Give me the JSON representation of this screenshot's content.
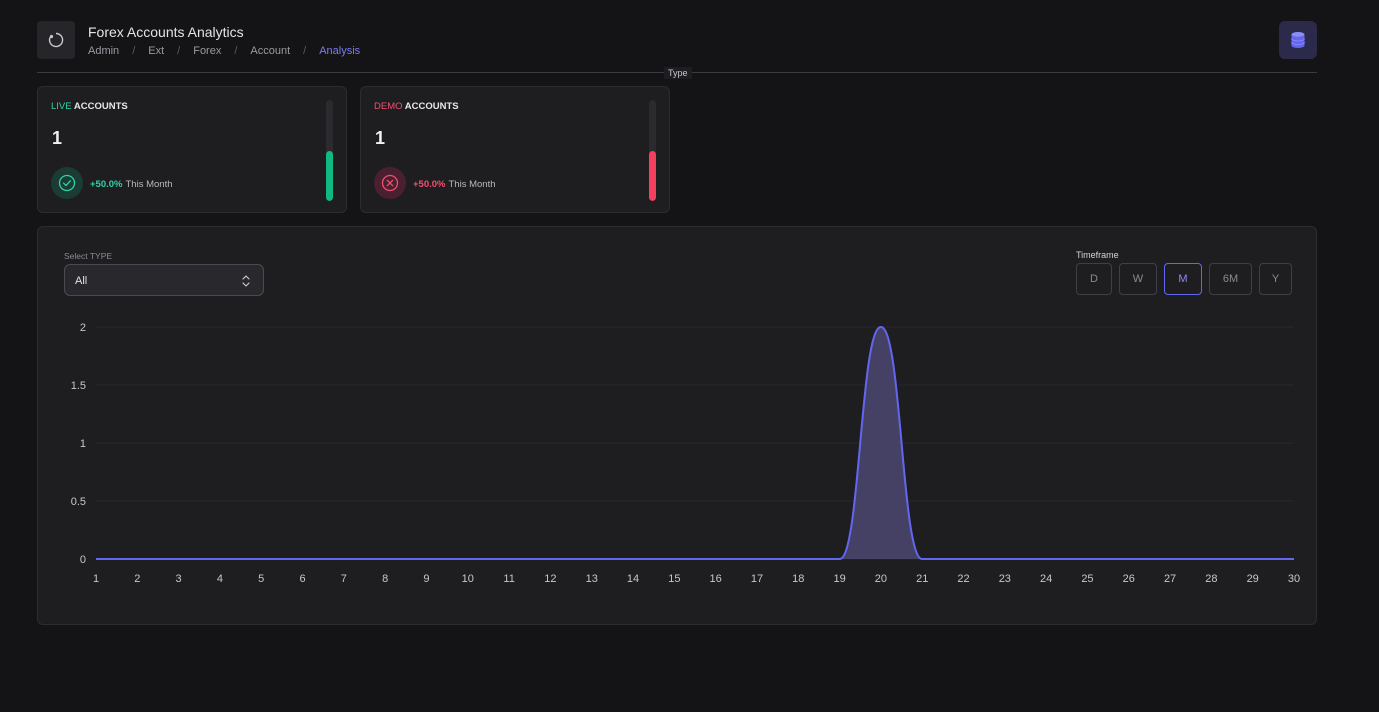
{
  "header": {
    "title": "Forex Accounts Analytics",
    "breadcrumb": [
      "Admin",
      "Ext",
      "Forex",
      "Account",
      "Analysis"
    ],
    "divider_label": "Type"
  },
  "cards": {
    "live": {
      "title_accent": "LIVE",
      "title_rest": "ACCOUNTS",
      "value": "1",
      "change": "+50.0%",
      "period": "This Month",
      "level": 0.5,
      "color": "#10b981"
    },
    "demo": {
      "title_accent": "DEMO",
      "title_rest": "ACCOUNTS",
      "value": "1",
      "change": "+50.0%",
      "period": "This Month",
      "level": 0.5,
      "color": "#f43f5e"
    }
  },
  "filters": {
    "select_label": "Select TYPE",
    "select_value": "All",
    "timeframe_label": "Timeframe",
    "timeframes": [
      "D",
      "W",
      "M",
      "6M",
      "Y"
    ],
    "active_timeframe": "M"
  },
  "chart_data": {
    "type": "area",
    "x": [
      1,
      2,
      3,
      4,
      5,
      6,
      7,
      8,
      9,
      10,
      11,
      12,
      13,
      14,
      15,
      16,
      17,
      18,
      19,
      20,
      21,
      22,
      23,
      24,
      25,
      26,
      27,
      28,
      29,
      30
    ],
    "series": [
      {
        "values": [
          0,
          0,
          0,
          0,
          0,
          0,
          0,
          0,
          0,
          0,
          0,
          0,
          0,
          0,
          0,
          0,
          0,
          0,
          0,
          2,
          0,
          0,
          0,
          0,
          0,
          0,
          0,
          0,
          0,
          0
        ]
      }
    ],
    "y_ticks": [
      "0",
      "0.5",
      "1",
      "1.5",
      "2"
    ],
    "ylim": [
      0,
      2
    ],
    "xlim": [
      1,
      30
    ],
    "grid": true,
    "line_color": "#6366f1",
    "fill_color": "#4b4870"
  }
}
